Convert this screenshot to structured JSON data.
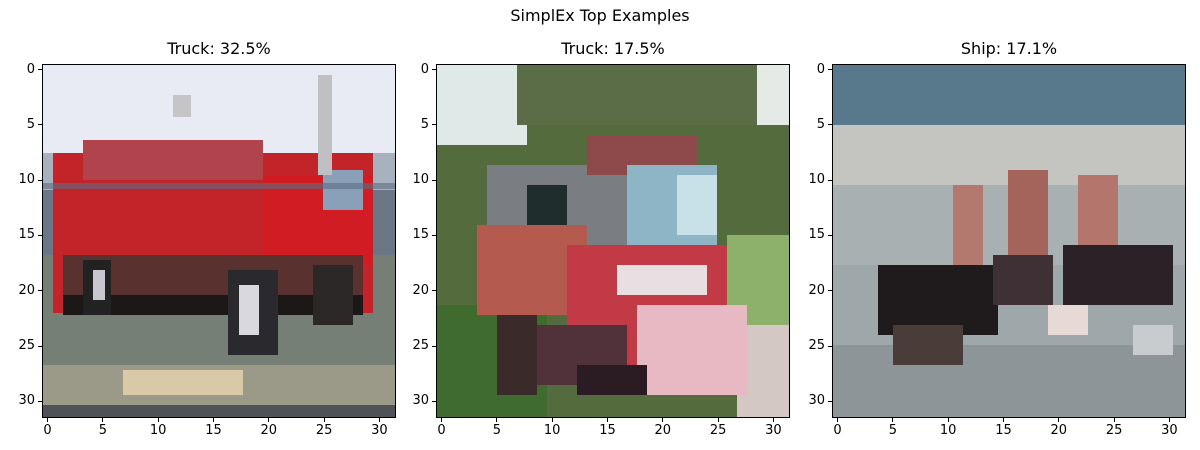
{
  "figure": {
    "suptitle": "SimplEx Top Examples"
  },
  "panels": [
    {
      "title": "Truck: 32.5%",
      "xticks": [
        "0",
        "5",
        "10",
        "15",
        "20",
        "25",
        "30"
      ],
      "yticks": [
        "0",
        "5",
        "10",
        "15",
        "20",
        "25",
        "30"
      ]
    },
    {
      "title": "Truck: 17.5%",
      "xticks": [
        "0",
        "5",
        "10",
        "15",
        "20",
        "25",
        "30"
      ],
      "yticks": [
        "0",
        "5",
        "10",
        "15",
        "20",
        "25",
        "30"
      ]
    },
    {
      "title": "Ship: 17.1%",
      "xticks": [
        "0",
        "5",
        "10",
        "15",
        "20",
        "25",
        "30"
      ],
      "yticks": [
        "0",
        "5",
        "10",
        "15",
        "20",
        "25",
        "30"
      ]
    }
  ]
}
